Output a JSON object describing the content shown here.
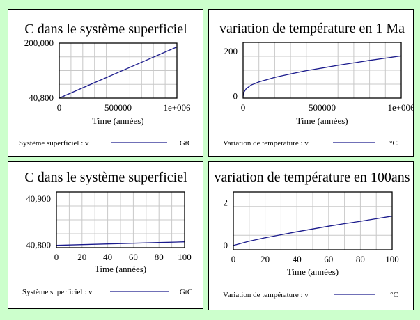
{
  "chart_data": [
    {
      "type": "line",
      "title": "C dans le système superficiel",
      "xlabel": "Time (années)",
      "xlim": [
        0,
        1000000
      ],
      "ylim": [
        40800,
        200000
      ],
      "xticks": [
        0,
        500000,
        1000000
      ],
      "xtick_labels": [
        "0",
        "500000",
        "1e+006"
      ],
      "yticks": [
        40800,
        200000
      ],
      "ytick_labels": [
        "40,800",
        "200,000"
      ],
      "grid": true,
      "legend": {
        "label": "Système superficiel : v",
        "unit": "GtC"
      },
      "series": [
        {
          "name": "Système superficiel : v",
          "x": [
            0,
            250000,
            500000,
            750000,
            1000000
          ],
          "y": [
            40800,
            78000,
            115000,
            152000,
            189000
          ]
        }
      ]
    },
    {
      "type": "line",
      "title": "variation de température en 1 Ma",
      "xlabel": "Time (années)",
      "xlim": [
        0,
        1000000
      ],
      "ylim": [
        -8,
        240
      ],
      "xticks": [
        0,
        500000,
        1000000
      ],
      "xtick_labels": [
        "0",
        "500000",
        "1e+006"
      ],
      "yticks": [
        0,
        200
      ],
      "ytick_labels": [
        "0",
        "200"
      ],
      "grid": true,
      "legend": {
        "label": "Variation de température : v",
        "unit": "°C"
      },
      "series": [
        {
          "name": "Variation de température : v",
          "x": [
            0,
            5000,
            20000,
            50000,
            100000,
            200000,
            300000,
            400000,
            500000,
            600000,
            700000,
            800000,
            900000,
            1000000
          ],
          "y": [
            0,
            18,
            34,
            50,
            64,
            84,
            100,
            114,
            126,
            138,
            149,
            160,
            170,
            180
          ]
        }
      ]
    },
    {
      "type": "line",
      "title": "C dans le système superficiel",
      "xlabel": "Time (années)",
      "xlim": [
        0,
        100
      ],
      "ylim": [
        40795,
        40915
      ],
      "xticks": [
        0,
        20,
        40,
        60,
        80,
        100
      ],
      "xtick_labels": [
        "0",
        "20",
        "40",
        "60",
        "80",
        "100"
      ],
      "yticks": [
        40800,
        40900
      ],
      "ytick_labels": [
        "40,800",
        "40,900"
      ],
      "grid": true,
      "legend": {
        "label": "Système superficiel : v",
        "unit": "GtC"
      },
      "series": [
        {
          "name": "Système superficiel : v",
          "x": [
            0,
            20,
            40,
            60,
            80,
            100
          ],
          "y": [
            40800,
            40801.5,
            40803,
            40804.5,
            40806,
            40807.5
          ]
        }
      ]
    },
    {
      "type": "line",
      "title": "variation de température en 100ans",
      "xlabel": "Time (années)",
      "xlim": [
        0,
        100
      ],
      "ylim": [
        -0.2,
        2.5
      ],
      "xticks": [
        0,
        20,
        40,
        60,
        80,
        100
      ],
      "xtick_labels": [
        "0",
        "20",
        "40",
        "60",
        "80",
        "100"
      ],
      "yticks": [
        0,
        2
      ],
      "ytick_labels": [
        "0",
        "2"
      ],
      "grid": true,
      "legend": {
        "label": "Variation de température : v",
        "unit": "°C"
      },
      "series": [
        {
          "name": "Variation de température : v",
          "x": [
            0,
            10,
            20,
            30,
            40,
            50,
            60,
            70,
            80,
            90,
            100
          ],
          "y": [
            0,
            0.2,
            0.36,
            0.5,
            0.64,
            0.77,
            0.9,
            1.02,
            1.13,
            1.25,
            1.37
          ]
        }
      ]
    }
  ]
}
